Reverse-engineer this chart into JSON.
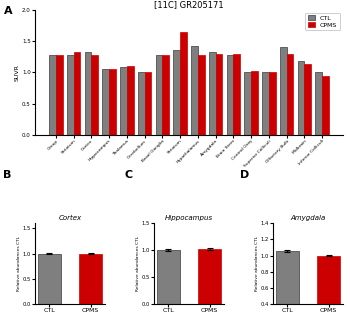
{
  "title_A": "[11C] GR205171",
  "categories": [
    "Group",
    "Striatum",
    "Cortex",
    "Hippocampus",
    "Thalamus",
    "Cerebellum",
    "Basal Ganglia",
    "Striatum",
    "Hypothalamus",
    "Amygdala",
    "Brain Stem",
    "Central Gray",
    "Superior Colliculi",
    "Olfactory Bulb",
    "Midbrain",
    "Inferior Colliculi"
  ],
  "CTL_values": [
    1.28,
    1.28,
    1.33,
    1.05,
    1.08,
    1.0,
    1.28,
    1.35,
    1.42,
    1.32,
    1.28,
    1.0,
    1.0,
    1.4,
    1.18,
    1.0
  ],
  "CPMS_values": [
    1.28,
    1.32,
    1.28,
    1.05,
    1.1,
    1.0,
    1.28,
    1.65,
    1.28,
    1.3,
    1.3,
    1.02,
    1.0,
    1.3,
    1.13,
    0.95
  ],
  "ylabel_A": "SUVR",
  "ylim_A": [
    0.0,
    2.0
  ],
  "yticks_A": [
    0.0,
    0.5,
    1.0,
    1.5,
    2.0
  ],
  "bar_color_CTL": "#7f7f7f",
  "bar_color_CPMS": "#cc0000",
  "bar_edge_CTL": "#3a3a3a",
  "bar_edge_CPMS": "#cc0000",
  "title_B": "Cortex",
  "title_C": "Hippocampus",
  "title_D": "Amygdala",
  "CTL_B": 1.0,
  "CPMS_B": 1.0,
  "CTL_C": 1.0,
  "CPMS_C": 1.02,
  "CTL_D": 1.06,
  "CPMS_D": 1.0,
  "err_CTL_B": 0.015,
  "err_CPMS_B": 0.015,
  "err_CTL_C": 0.015,
  "err_CPMS_C": 0.015,
  "err_CTL_D": 0.015,
  "err_CPMS_D": 0.01,
  "ylabel_B": "Relative abundances CTL",
  "ylabel_C": "Relative abundances CTL",
  "ylabel_D": "Relative abundances CTL",
  "ylim_B": [
    0.0,
    1.6
  ],
  "ylim_C": [
    0.0,
    1.5
  ],
  "ylim_D": [
    0.4,
    1.4
  ],
  "yticks_B": [
    0.0,
    0.5,
    1.0,
    1.5
  ],
  "yticks_C": [
    0.0,
    0.5,
    1.0,
    1.5
  ],
  "yticks_D": [
    0.4,
    0.6,
    0.8,
    1.0,
    1.2,
    1.4
  ],
  "xlabel_bottom": [
    "CTL",
    "CPMS"
  ],
  "legend_labels": [
    "CTL",
    "CPMS"
  ],
  "background_color": "#ffffff"
}
